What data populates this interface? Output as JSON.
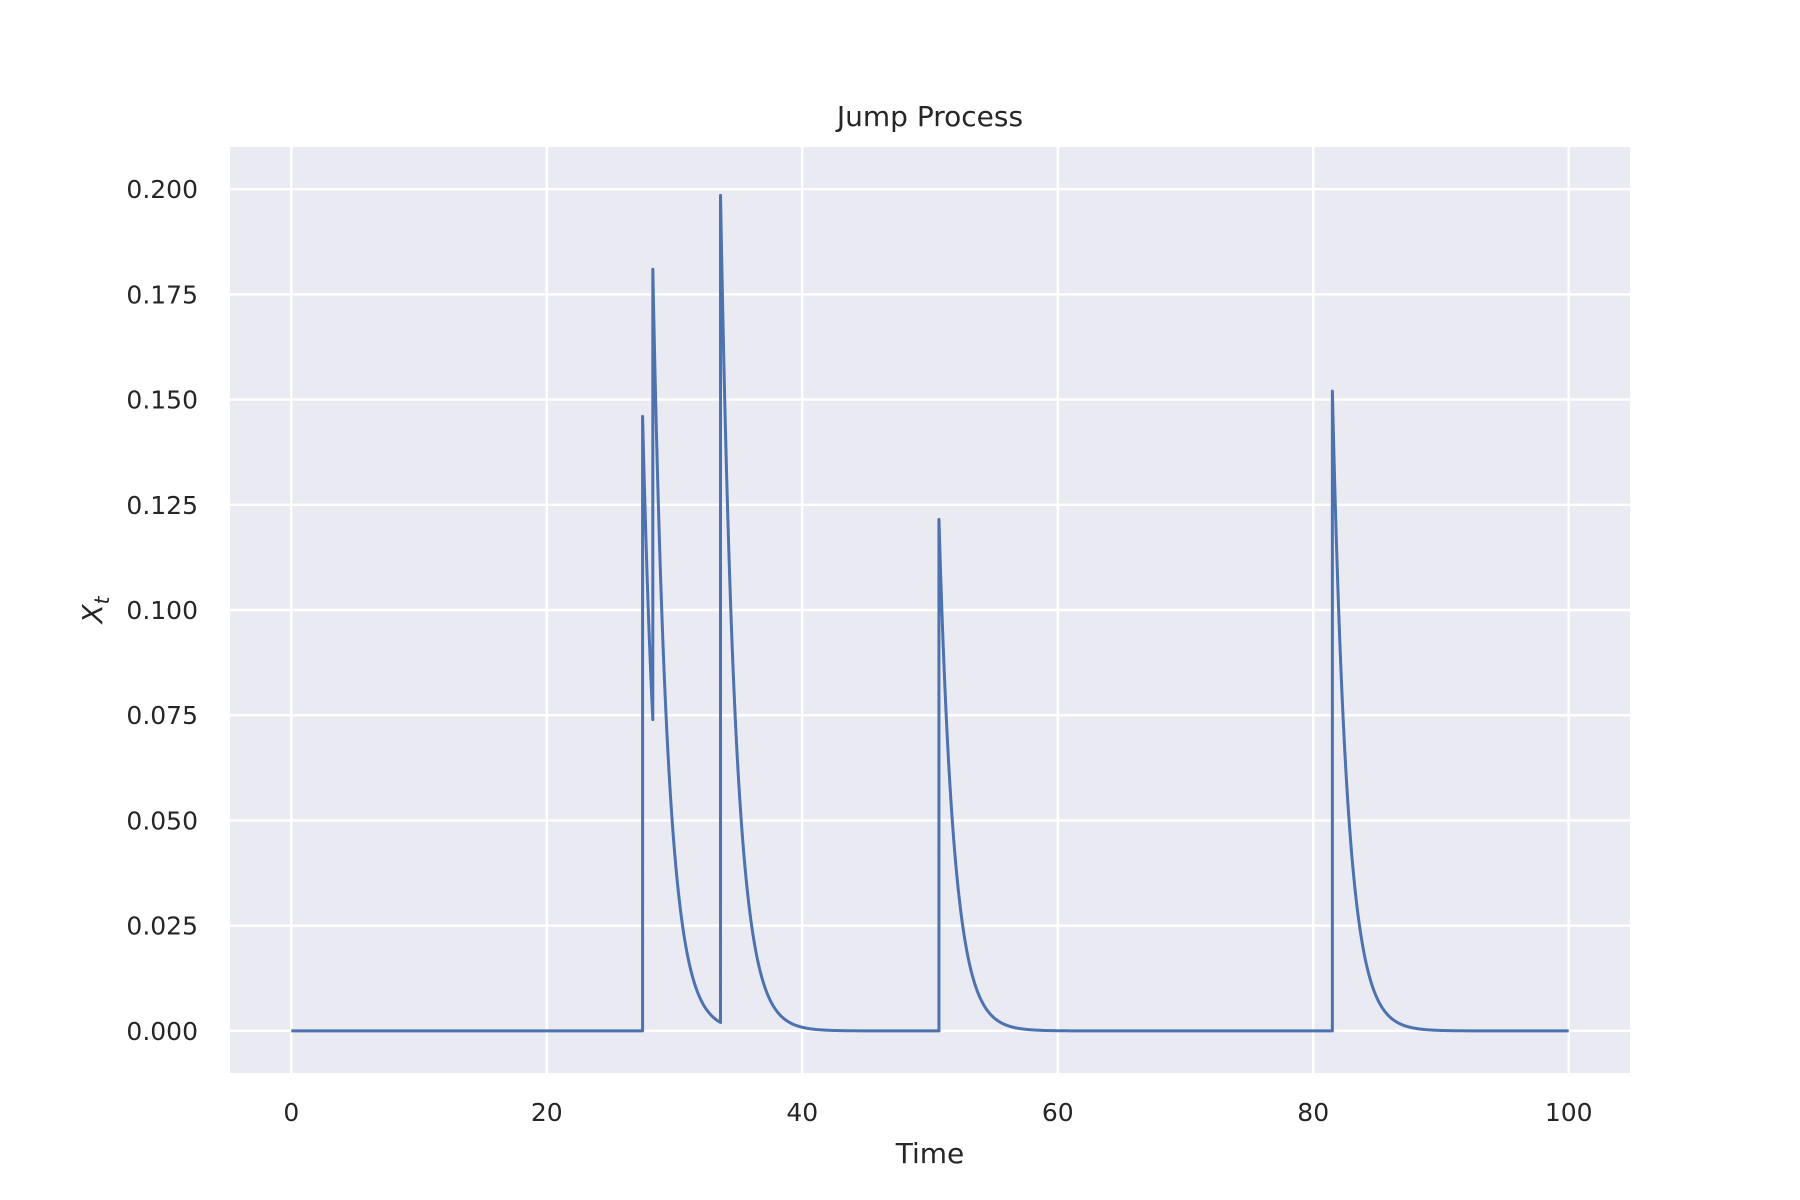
{
  "chart_data": {
    "type": "line",
    "title": "Jump Process",
    "xlabel": "Time",
    "ylabel_base": "X",
    "ylabel_sub": "t",
    "xlim": [
      -4.8,
      104.8
    ],
    "ylim": [
      -0.01,
      0.21
    ],
    "xticks": [
      0,
      20,
      40,
      60,
      80,
      100
    ],
    "xtick_labels": [
      "0",
      "20",
      "40",
      "60",
      "80",
      "100"
    ],
    "yticks": [
      0.0,
      0.025,
      0.05,
      0.075,
      0.1,
      0.125,
      0.15,
      0.175,
      0.2
    ],
    "ytick_labels": [
      "0.000",
      "0.025",
      "0.050",
      "0.075",
      "0.100",
      "0.125",
      "0.150",
      "0.175",
      "0.200"
    ],
    "grid": true,
    "background": "#eaeaf2",
    "series": [
      {
        "color": "#4c72b0",
        "jumps": [
          {
            "t": 27.5,
            "height": 0.146
          },
          {
            "t": 28.3,
            "height": 0.107
          },
          {
            "t": 33.6,
            "height": 0.1965
          },
          {
            "t": 50.7,
            "height": 0.1215
          },
          {
            "t": 81.5,
            "height": 0.152
          }
        ],
        "decay_rate": 0.85,
        "t_start": 0,
        "t_end": 100
      }
    ]
  }
}
